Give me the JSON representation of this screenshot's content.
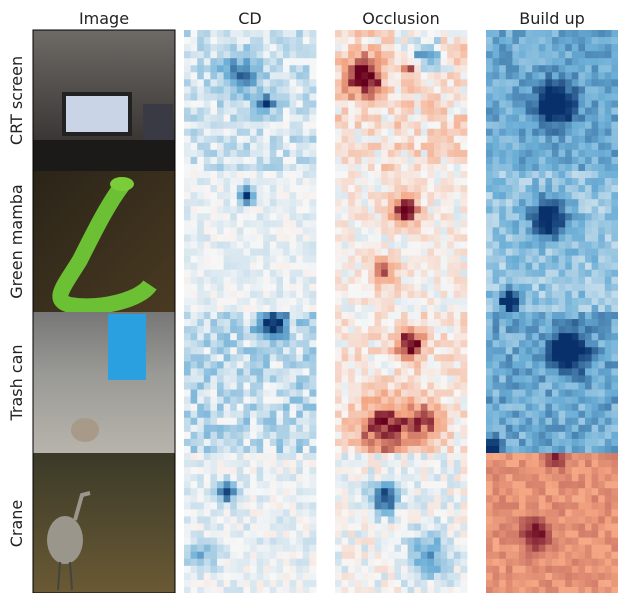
{
  "columns": [
    "Image",
    "CD",
    "Occlusion",
    "Build up"
  ],
  "rows": [
    "CRT screen",
    "Green mamba",
    "Trash can",
    "Crane"
  ]
}
